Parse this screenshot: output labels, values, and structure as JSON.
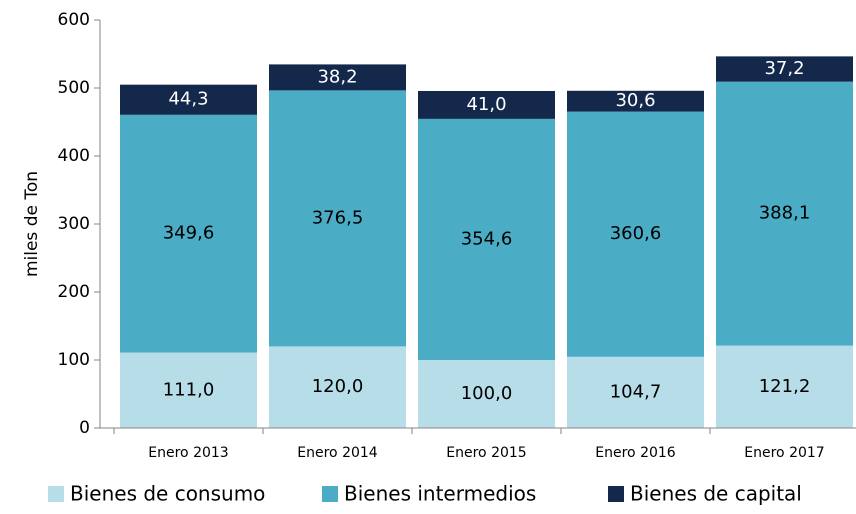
{
  "chart_data": {
    "type": "stacked_bar",
    "y_label": "miles de Ton",
    "categories": [
      "Enero 2013",
      "Enero 2014",
      "Enero 2015",
      "Enero 2016",
      "Enero 2017"
    ],
    "series": [
      {
        "name": "Bienes de consumo",
        "color": "#b7dde8",
        "values": [
          111.0,
          120.0,
          100.0,
          104.7,
          121.2
        ],
        "value_labels": [
          "111,0",
          "120,0",
          "100,0",
          "104,7",
          "121,2"
        ]
      },
      {
        "name": "Bienes intermedios",
        "color": "#4bacc6",
        "values": [
          349.6,
          376.5,
          354.6,
          360.6,
          388.1
        ],
        "value_labels": [
          "349,6",
          "376,5",
          "354,6",
          "360,6",
          "388,1"
        ]
      },
      {
        "name": "Bienes de capital",
        "color": "#14284b",
        "values": [
          44.3,
          38.2,
          41.0,
          30.6,
          37.2
        ],
        "value_labels": [
          "44,3",
          "38,2",
          "41,0",
          "30,6",
          "37,2"
        ]
      }
    ],
    "ylim": [
      0,
      600
    ],
    "yticks": [
      0,
      100,
      200,
      300,
      400,
      500,
      600
    ],
    "legend": "bottom"
  }
}
